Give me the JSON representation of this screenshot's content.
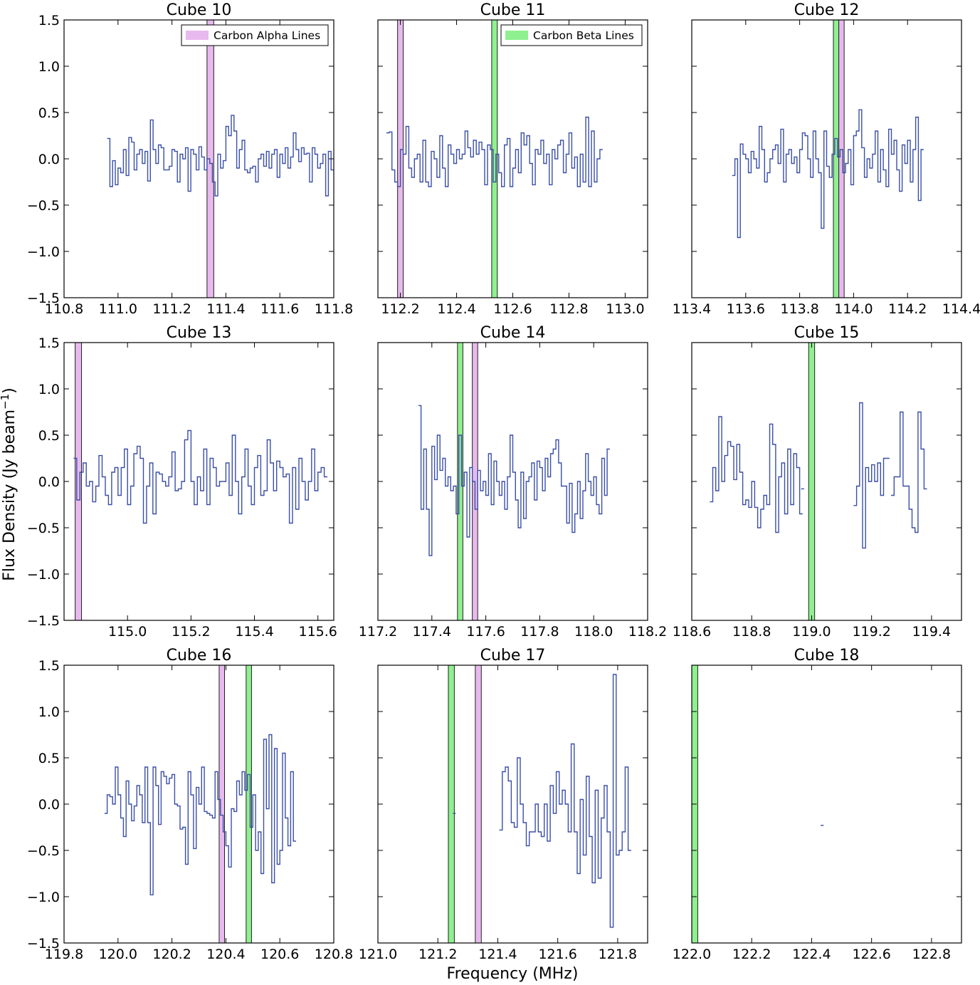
{
  "figure": {
    "xlabel": "Frequency (MHz)",
    "ylabel": "Flux Density (Jy beam",
    "ylabel_sup": "−1",
    "ylabel_close": ")"
  },
  "legend": {
    "alpha": "Carbon Alpha Lines",
    "beta": "Carbon Beta Lines"
  },
  "colors": {
    "spectrum": "#3a4fa8",
    "alpha_fill": "#e8b9ee",
    "beta_fill": "#8ff08f",
    "band_edge": "#222222"
  },
  "chart_data": [
    {
      "type": "line",
      "title": "Cube 10",
      "xlim": [
        110.8,
        111.8
      ],
      "ylim": [
        -1.5,
        1.5
      ],
      "xticks": [
        "110.8",
        "111.0",
        "111.2",
        "111.4",
        "111.6",
        "111.8"
      ],
      "yticks": [
        "−1.5",
        "−1.0",
        "−0.5",
        "0.0",
        "0.5",
        "1.0",
        "1.5"
      ],
      "legend": "alpha",
      "alpha_lines": [
        [
          111.33,
          111.355
        ]
      ],
      "beta_lines": [],
      "series": [
        {
          "x_start": 110.96,
          "dx": 0.01,
          "values": [
            0.22,
            -0.3,
            -0.02,
            -0.28,
            -0.1,
            -0.15,
            0.1,
            -0.18,
            0.23,
            0.18,
            -0.12,
            0.05,
            0.1,
            -0.05,
            0.08,
            -0.24,
            0.42,
            0.1,
            -0.05,
            0.15,
            0.12,
            -0.12,
            -0.12,
            -0.08,
            0.1,
            0.08,
            -0.25,
            0.05,
            0.0,
            0.12,
            -0.35,
            0.1,
            0.05,
            -0.12,
            0.13,
            0.02,
            -0.12,
            0.0,
            -0.05,
            -0.25,
            -0.4,
            0.05,
            -0.1,
            -0.02,
            0.35,
            0.25,
            0.47,
            0.3,
            -0.1,
            0.1,
            0.2,
            -0.12,
            -0.15,
            -0.1,
            -0.08,
            -0.25,
            0.0,
            0.05,
            -0.08,
            0.08,
            -0.1,
            0.05,
            0.1,
            -0.2,
            0.05,
            -0.05,
            0.12,
            -0.1,
            0.02,
            0.28,
            0.1,
            -0.03,
            0.12,
            0.05,
            0.06,
            -0.25,
            0.12,
            0.05,
            -0.1,
            -0.05,
            0.05,
            -0.4,
            0.08,
            -0.12
          ]
        }
      ]
    },
    {
      "type": "line",
      "title": "Cube 11",
      "xlim": [
        112.12,
        113.08
      ],
      "ylim": [
        -1.5,
        1.5
      ],
      "xticks": [
        "112.2",
        "112.4",
        "112.6",
        "112.8",
        "113.0"
      ],
      "xtick_values": [
        112.2,
        112.4,
        112.6,
        112.8,
        113.0
      ],
      "yticks": [],
      "legend": "beta",
      "alpha_lines": [
        [
          112.19,
          112.21
        ]
      ],
      "beta_lines": [
        [
          112.525,
          112.545
        ]
      ],
      "series": [
        {
          "x_start": 112.15,
          "dx": 0.01,
          "values": [
            0.28,
            0.29,
            -0.12,
            -0.25,
            -0.3,
            0.1,
            0.05,
            0.35,
            -0.1,
            -0.2,
            0.0,
            0.05,
            -0.25,
            0.2,
            -0.25,
            -0.3,
            0.08,
            0.0,
            -0.2,
            0.25,
            -0.1,
            -0.3,
            0.15,
            0.05,
            -0.05,
            0.1,
            0.0,
            0.05,
            0.3,
            0.12,
            0.02,
            0.2,
            0.05,
            0.18,
            0.1,
            -0.28,
            0.15,
            0.1,
            -0.25,
            0.05,
            -0.15,
            -0.3,
            0.15,
            0.22,
            -0.3,
            -0.1,
            0.1,
            -0.15,
            0.28,
            0.15,
            0.25,
            -0.05,
            -0.28,
            0.1,
            0.05,
            0.2,
            -0.05,
            0.05,
            -0.28,
            0.1,
            0.0,
            0.15,
            0.2,
            -0.15,
            0.05,
            0.28,
            -0.1,
            0.02,
            -0.3,
            0.05,
            -0.25,
            0.45,
            -0.3,
            0.3,
            -0.25,
            0.0,
            0.1
          ]
        }
      ]
    },
    {
      "type": "line",
      "title": "Cube 12",
      "xlim": [
        113.4,
        114.4
      ],
      "ylim": [
        -1.5,
        1.5
      ],
      "xticks": [
        "113.4",
        "113.6",
        "113.8",
        "114.0",
        "114.2",
        "114.4"
      ],
      "yticks": [],
      "legend": "none",
      "alpha_lines": [
        [
          113.945,
          113.965
        ]
      ],
      "beta_lines": [
        [
          113.925,
          113.945
        ]
      ],
      "series": [
        {
          "x_start": 113.55,
          "dx": 0.01,
          "values": [
            -0.18,
            0.0,
            -0.85,
            0.16,
            0.05,
            0.0,
            -0.15,
            0.08,
            0.0,
            -0.1,
            0.35,
            0.1,
            -0.25,
            -0.15,
            0.0,
            0.1,
            0.15,
            -0.05,
            0.32,
            -0.25,
            0.05,
            0.1,
            -0.05,
            0.02,
            -0.15,
            0.1,
            0.28,
            0.25,
            0.0,
            -0.2,
            0.3,
            0.0,
            -0.15,
            -0.75,
            0.3,
            -0.08,
            -0.2,
            0.05,
            0.22,
            0.02,
            0.1,
            -0.15,
            -0.05,
            0.1,
            -0.28,
            0.25,
            0.3,
            0.53,
            0.12,
            -0.2,
            0.0,
            -0.1,
            0.05,
            0.3,
            -0.25,
            0.1,
            -0.12,
            -0.3,
            0.32,
            0.05,
            0.2,
            -0.12,
            -0.35,
            0.15,
            -0.05,
            0.2,
            -0.25,
            0.1,
            0.45,
            -0.45,
            0.1
          ]
        }
      ]
    },
    {
      "type": "line",
      "title": "Cube 13",
      "xlim": [
        114.8,
        115.65
      ],
      "ylim": [
        -1.5,
        1.5
      ],
      "xticks": [
        "115.0",
        "115.2",
        "115.4",
        "115.6"
      ],
      "xtick_values": [
        115.0,
        115.2,
        115.4,
        115.6
      ],
      "yticks": [
        "−1.5",
        "−1.0",
        "−0.5",
        "0.0",
        "0.5",
        "1.0",
        "1.5"
      ],
      "legend": "none",
      "alpha_lines": [
        [
          114.835,
          114.855
        ]
      ],
      "beta_lines": [],
      "series": [
        {
          "x_start": 114.83,
          "dx": 0.01,
          "values": [
            0.25,
            -0.2,
            0.1,
            0.2,
            -0.05,
            0.0,
            -0.22,
            -0.05,
            0.28,
            0.05,
            -0.15,
            -0.25,
            0.1,
            0.15,
            -0.15,
            0.15,
            0.35,
            -0.25,
            -0.05,
            0.3,
            0.38,
            0.25,
            -0.45,
            -0.05,
            0.2,
            -0.35,
            0.1,
            0.08,
            0.0,
            -0.05,
            0.05,
            0.32,
            -0.1,
            -0.08,
            0.0,
            0.45,
            0.55,
            0.0,
            -0.25,
            0.05,
            -0.1,
            0.35,
            -0.25,
            0.25,
            0.15,
            -0.05,
            0.0,
            0.0,
            0.2,
            -0.15,
            0.5,
            0.0,
            -0.35,
            0.05,
            0.35,
            -0.05,
            -0.25,
            0.15,
            0.28,
            -0.15,
            -0.1,
            0.45,
            0.2,
            -0.1,
            0.22,
            0.15,
            0.05,
            0.08,
            -0.45,
            0.15,
            -0.3,
            0.25,
            0.0,
            -0.2,
            0.0,
            0.35,
            -0.1,
            0.1,
            0.15,
            0.05
          ]
        }
      ]
    },
    {
      "type": "line",
      "title": "Cube 14",
      "xlim": [
        117.2,
        118.2
      ],
      "ylim": [
        -1.5,
        1.5
      ],
      "xticks": [
        "117.2",
        "117.4",
        "117.6",
        "117.8",
        "118.0",
        "118.2"
      ],
      "yticks": [],
      "legend": "none",
      "alpha_lines": [
        [
          117.55,
          117.57
        ]
      ],
      "beta_lines": [
        [
          117.495,
          117.515
        ]
      ],
      "series": [
        {
          "x_start": 117.35,
          "dx": 0.01,
          "values": [
            0.82,
            -0.3,
            0.35,
            -0.3,
            -0.8,
            0.38,
            0.02,
            0.5,
            0.12,
            0.25,
            -0.05,
            0.05,
            -0.1,
            -0.05,
            -0.35,
            0.5,
            -0.05,
            0.1,
            -0.6,
            0.15,
            0.0,
            -0.3,
            0.12,
            -0.1,
            0.0,
            -0.15,
            0.3,
            -0.25,
            0.22,
            0.0,
            -0.15,
            0.0,
            -0.3,
            0.05,
            0.5,
            0.1,
            -0.2,
            -0.5,
            0.1,
            -0.4,
            0.0,
            0.05,
            0.2,
            -0.2,
            0.22,
            0.15,
            -0.1,
            0.25,
            0.05,
            0.3,
            0.35,
            0.45,
            0.2,
            -0.05,
            -0.05,
            -0.45,
            -0.02,
            -0.55,
            -0.35,
            0.0,
            -0.4,
            -0.1,
            0.3,
            0.0,
            -0.15,
            0.05,
            -0.25,
            -0.35,
            0.25,
            -0.15,
            0.35
          ]
        }
      ]
    },
    {
      "type": "line",
      "title": "Cube 15",
      "xlim": [
        118.6,
        119.5
      ],
      "ylim": [
        -1.5,
        1.5
      ],
      "xticks": [
        "118.6",
        "118.8",
        "119.0",
        "119.2",
        "119.4"
      ],
      "yticks": [],
      "legend": "none",
      "alpha_lines": [],
      "beta_lines": [
        [
          118.99,
          119.01
        ]
      ],
      "series": [
        {
          "x_start": 118.66,
          "dx": 0.01,
          "values": [
            -0.22,
            0.15,
            -0.1,
            0.7,
            0.0,
            0.28,
            0.43,
            0.38,
            0.02,
            0.4,
            0.1,
            -0.25,
            -0.2,
            -0.28,
            0.0,
            -0.28,
            -0.5,
            -0.3,
            -0.15,
            -0.25,
            0.62,
            0.4,
            -0.55,
            0.05,
            0.2,
            -0.35,
            0.35,
            -0.25,
            0.3,
            0.15,
            -0.35
          ]
        },
        {
          "x_start": 118.965,
          "dx": 0.01,
          "values": [
            -0.08
          ]
        },
        {
          "x_start": 119.14,
          "dx": 0.01,
          "values": [
            -0.26,
            -0.05,
            0.85,
            -0.72,
            0.15,
            0.0,
            0.18,
            0.0,
            0.2,
            -0.15,
            0.25,
            0.25
          ]
        },
        {
          "x_start": 119.265,
          "dx": 0.01,
          "values": [
            -0.15,
            0.05,
            0.05,
            0.75,
            -0.05,
            -0.05,
            -0.3,
            -0.5,
            -0.55,
            0.75,
            0.35,
            -0.08
          ]
        }
      ]
    },
    {
      "type": "line",
      "title": "Cube 16",
      "xlim": [
        119.8,
        120.8
      ],
      "ylim": [
        -1.5,
        1.5
      ],
      "xticks": [
        "119.8",
        "120.0",
        "120.2",
        "120.4",
        "120.6",
        "120.8"
      ],
      "yticks": [
        "−1.5",
        "−1.0",
        "−0.5",
        "0.0",
        "0.5",
        "1.0",
        "1.5"
      ],
      "legend": "none",
      "alpha_lines": [
        [
          120.375,
          120.395
        ]
      ],
      "beta_lines": [
        [
          120.475,
          120.495
        ]
      ],
      "series": [
        {
          "x_start": 119.95,
          "dx": 0.01,
          "values": [
            -0.1,
            0.1,
            0.08,
            0.0,
            0.4,
            0.1,
            -0.15,
            -0.35,
            0.25,
            0.0,
            -0.18,
            -0.02,
            0.2,
            0.1,
            -0.2,
            0.4,
            -0.2,
            -0.98,
            0.4,
            0.2,
            -0.22,
            0.35,
            0.3,
            0.22,
            0.28,
            0.32,
            0.0,
            -0.02,
            -0.27,
            -0.25,
            -0.65,
            0.35,
            0.1,
            -0.48,
            0.18,
            0.0,
            0.4,
            -0.08,
            -0.1,
            -0.12,
            -0.15,
            0.35,
            0.05,
            -0.12,
            -0.3,
            -0.45,
            -0.68,
            -0.05,
            -0.08,
            0.25,
            0.1,
            0.35,
            0.15,
            0.32,
            -0.25,
            0.1,
            -0.5,
            -0.3,
            -0.75,
            0.7,
            -0.05,
            0.75,
            -0.85,
            0.6,
            -0.65,
            -0.5,
            0.55,
            -0.15,
            -0.45,
            0.35,
            -0.4
          ]
        }
      ]
    },
    {
      "type": "line",
      "title": "Cube 17",
      "xlim": [
        121.0,
        121.9
      ],
      "ylim": [
        -1.5,
        1.5
      ],
      "xticks": [
        "121.0",
        "121.2",
        "121.4",
        "121.6",
        "121.8"
      ],
      "yticks": [],
      "legend": "none",
      "alpha_lines": [
        [
          121.325,
          121.345
        ]
      ],
      "beta_lines": [
        [
          121.235,
          121.255
        ]
      ],
      "series": [
        {
          "x_start": 121.25,
          "dx": 0.01,
          "values": [
            -0.1
          ]
        },
        {
          "x_start": 121.405,
          "dx": 0.01,
          "values": [
            -0.28,
            0.35,
            0.4,
            0.25,
            -0.2,
            -0.25,
            0.5,
            0.0,
            -0.2,
            -0.45,
            -0.3,
            -0.3,
            0.0,
            -0.3,
            -0.35,
            0.0,
            -0.4,
            0.2,
            -0.1,
            0.35,
            0.0,
            0.15,
            0.0,
            -0.3,
            0.65,
            -0.3,
            -0.75,
            0.05,
            -0.55,
            0.3,
            -0.35,
            -0.85,
            0.15,
            -0.8,
            -0.15,
            0.2,
            -0.3,
            -1.33,
            1.4,
            -0.55,
            -0.5,
            -0.3,
            0.4,
            -0.5
          ]
        }
      ]
    },
    {
      "type": "line",
      "title": "Cube 18",
      "xlim": [
        122.0,
        122.9
      ],
      "ylim": [
        -1.5,
        1.5
      ],
      "xticks": [
        "122.0",
        "122.2",
        "122.4",
        "122.6",
        "122.8"
      ],
      "yticks": [],
      "legend": "none",
      "alpha_lines": [],
      "beta_lines": [
        [
          122.0,
          122.02
        ]
      ],
      "series": [
        {
          "x_start": 122.43,
          "dx": 0.01,
          "values": [
            -0.23
          ]
        }
      ]
    }
  ]
}
